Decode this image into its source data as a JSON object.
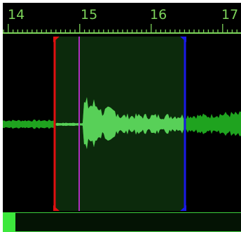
{
  "ruler": {
    "labels": [
      "14",
      "15",
      "16",
      "17"
    ]
  },
  "colors": {
    "background": "#000000",
    "ruler_text": "#7cd35a",
    "waveform": "#1fa31f",
    "waveform_selected": "#58d058",
    "selection_fill": "#0c2a0c",
    "start_marker": "#e01010",
    "end_marker": "#1a1ae8",
    "playhead": "#b030c0",
    "scroll_thumb": "#3ce83c"
  },
  "scrollbar": {
    "position_fraction": 0.0
  }
}
